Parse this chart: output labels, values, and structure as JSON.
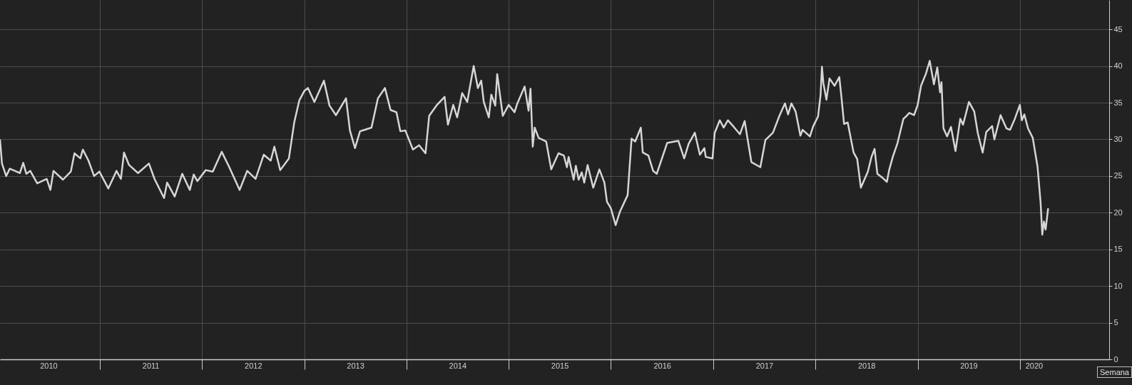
{
  "chart_data": {
    "type": "line",
    "x": [
      "2010-01-10",
      "2010-01-17",
      "2010-02-01",
      "2010-02-14",
      "2010-03-04",
      "2010-03-22",
      "2010-04-03",
      "2010-04-14",
      "2010-04-28",
      "2010-05-23",
      "2010-06-26",
      "2010-07-09",
      "2010-07-20",
      "2010-08-23",
      "2010-09-20",
      "2010-10-03",
      "2010-10-24",
      "2010-11-02",
      "2010-11-22",
      "2010-12-12",
      "2010-12-31",
      "2011-02-01",
      "2011-03-02",
      "2011-03-18",
      "2011-03-29",
      "2011-04-16",
      "2011-05-18",
      "2011-06-26",
      "2011-07-16",
      "2011-08-19",
      "2011-08-30",
      "2011-09-26",
      "2011-10-23",
      "2011-11-19",
      "2011-12-03",
      "2011-12-16",
      "2012-01-15",
      "2012-02-09",
      "2012-03-12",
      "2012-04-08",
      "2012-05-15",
      "2012-06-11",
      "2012-07-11",
      "2012-08-09",
      "2012-09-03",
      "2012-09-16",
      "2012-10-07",
      "2012-11-07",
      "2012-11-26",
      "2012-12-14",
      "2013-01-01",
      "2013-01-14",
      "2013-02-06",
      "2013-03-12",
      "2013-04-01",
      "2013-04-24",
      "2013-05-30",
      "2013-06-13",
      "2013-07-01",
      "2013-07-19",
      "2013-08-29",
      "2013-09-21",
      "2013-10-16",
      "2013-11-05",
      "2013-11-26",
      "2013-12-10",
      "2013-12-28",
      "2014-01-24",
      "2014-02-15",
      "2014-03-10",
      "2014-03-23",
      "2014-04-20",
      "2014-05-17",
      "2014-05-29",
      "2014-06-17",
      "2014-07-01",
      "2014-07-19",
      "2014-08-06",
      "2014-08-29",
      "2014-09-13",
      "2014-09-25",
      "2014-10-04",
      "2014-10-22",
      "2014-10-31",
      "2014-11-14",
      "2014-11-21",
      "2014-12-11",
      "2015-01-01",
      "2015-01-22",
      "2015-01-31",
      "2015-02-27",
      "2015-03-13",
      "2015-03-20",
      "2015-03-28",
      "2015-04-04",
      "2015-04-18",
      "2015-05-15",
      "2015-06-02",
      "2015-06-28",
      "2015-07-17",
      "2015-07-28",
      "2015-08-03",
      "2015-08-21",
      "2015-08-29",
      "2015-09-08",
      "2015-09-19",
      "2015-09-28",
      "2015-10-10",
      "2015-10-30",
      "2015-11-21",
      "2015-12-09",
      "2015-12-18",
      "2016-01-01",
      "2016-01-18",
      "2016-02-02",
      "2016-03-01",
      "2016-03-15",
      "2016-03-28",
      "2016-04-17",
      "2016-04-24",
      "2016-05-14",
      "2016-05-31",
      "2016-06-13",
      "2016-07-20",
      "2016-08-29",
      "2016-09-19",
      "2016-10-05",
      "2016-10-27",
      "2016-11-14",
      "2016-11-30",
      "2016-12-05",
      "2016-12-29",
      "2017-01-06",
      "2017-01-24",
      "2017-02-07",
      "2017-02-22",
      "2017-03-15",
      "2017-04-06",
      "2017-04-23",
      "2017-05-04",
      "2017-05-17",
      "2017-06-18",
      "2017-07-06",
      "2017-08-02",
      "2017-08-25",
      "2017-09-14",
      "2017-09-25",
      "2017-10-07",
      "2017-10-22",
      "2017-11-08",
      "2017-11-16",
      "2017-12-12",
      "2017-12-24",
      "2018-01-10",
      "2018-01-19",
      "2018-01-24",
      "2018-01-29",
      "2018-02-09",
      "2018-02-20",
      "2018-03-10",
      "2018-03-27",
      "2018-04-03",
      "2018-04-13",
      "2018-04-26",
      "2018-05-17",
      "2018-05-30",
      "2018-06-12",
      "2018-07-07",
      "2018-07-20",
      "2018-07-31",
      "2018-08-10",
      "2018-08-27",
      "2018-09-13",
      "2018-09-21",
      "2018-10-04",
      "2018-10-21",
      "2018-11-11",
      "2018-11-20",
      "2018-12-02",
      "2018-12-19",
      "2019-01-01",
      "2019-01-13",
      "2019-01-30",
      "2019-02-13",
      "2019-02-28",
      "2019-03-12",
      "2019-03-22",
      "2019-03-27",
      "2019-04-03",
      "2019-04-16",
      "2019-04-30",
      "2019-05-16",
      "2019-06-02",
      "2019-06-12",
      "2019-06-23",
      "2019-07-03",
      "2019-07-22",
      "2019-08-04",
      "2019-08-21",
      "2019-09-03",
      "2019-09-24",
      "2019-10-02",
      "2019-10-24",
      "2019-11-14",
      "2019-11-27",
      "2019-12-14",
      "2020-01-01",
      "2020-01-08",
      "2020-01-17",
      "2020-01-30",
      "2020-02-16",
      "2020-03-04",
      "2020-03-15",
      "2020-03-21",
      "2020-03-27",
      "2020-04-02",
      "2020-04-11"
    ],
    "series": [
      {
        "color": "#d6d6d6",
        "values": [
          30.0,
          26.7,
          25.0,
          26.0,
          25.7,
          25.4,
          26.8,
          25.3,
          25.7,
          24.0,
          24.6,
          23.1,
          25.7,
          24.5,
          25.6,
          28.1,
          27.4,
          28.6,
          27.1,
          25.0,
          25.6,
          23.3,
          25.7,
          24.6,
          28.2,
          26.5,
          25.4,
          26.7,
          24.6,
          22.0,
          24.1,
          22.2,
          25.3,
          23.1,
          25.2,
          24.3,
          25.8,
          25.6,
          28.3,
          26.2,
          23.1,
          25.7,
          24.6,
          27.9,
          27.1,
          29.0,
          25.8,
          27.4,
          32.3,
          35.3,
          36.6,
          37.0,
          35.1,
          38.0,
          34.6,
          33.3,
          35.6,
          31.2,
          28.8,
          31.1,
          31.6,
          35.6,
          37.0,
          34.0,
          33.7,
          31.1,
          31.2,
          28.6,
          29.2,
          28.1,
          33.2,
          34.7,
          35.8,
          32.0,
          34.7,
          33.0,
          36.3,
          35.1,
          40.0,
          37.0,
          38.0,
          35.1,
          33.0,
          36.1,
          34.6,
          38.9,
          33.2,
          34.7,
          33.7,
          34.8,
          37.2,
          33.9,
          36.9,
          29.0,
          31.6,
          30.2,
          29.7,
          25.9,
          28.1,
          27.8,
          26.2,
          27.6,
          24.5,
          26.4,
          24.5,
          25.5,
          24.1,
          26.5,
          23.4,
          25.9,
          24.1,
          21.5,
          20.6,
          18.3,
          20.1,
          22.4,
          30.1,
          29.7,
          31.6,
          28.2,
          27.8,
          25.7,
          25.3,
          29.5,
          29.8,
          27.4,
          29.4,
          30.9,
          27.9,
          28.8,
          27.6,
          27.4,
          30.9,
          32.6,
          31.6,
          32.6,
          31.7,
          30.7,
          32.5,
          29.9,
          26.9,
          26.2,
          29.9,
          30.9,
          33.2,
          34.9,
          33.4,
          34.9,
          33.8,
          30.5,
          31.3,
          30.4,
          31.8,
          33.1,
          36.0,
          39.9,
          37.7,
          35.4,
          38.3,
          37.3,
          38.5,
          36.0,
          32.1,
          32.3,
          28.2,
          27.3,
          23.4,
          25.6,
          27.6,
          28.7,
          25.3,
          24.8,
          24.2,
          25.8,
          27.6,
          29.5,
          32.8,
          33.1,
          33.6,
          33.3,
          34.7,
          37.3,
          38.9,
          40.7,
          37.5,
          39.8,
          36.4,
          37.8,
          31.5,
          30.4,
          31.7,
          28.4,
          32.8,
          32.0,
          33.6,
          35.1,
          33.8,
          30.8,
          28.2,
          31.0,
          31.8,
          30.0,
          33.3,
          31.5,
          31.3,
          32.8,
          34.7,
          32.6,
          33.4,
          31.5,
          30.2,
          26.3,
          21.4,
          17.0,
          18.8,
          17.7,
          20.6
        ]
      }
    ],
    "xlim": [
      "2010-01-10",
      "2020-11-15"
    ],
    "xticks": [
      {
        "value": "2010-07-02",
        "label": "2010"
      },
      {
        "value": "2011-01-01",
        "label": null
      },
      {
        "value": "2011-07-02",
        "label": "2011"
      },
      {
        "value": "2012-01-01",
        "label": null
      },
      {
        "value": "2012-07-02",
        "label": "2012"
      },
      {
        "value": "2013-01-01",
        "label": null
      },
      {
        "value": "2013-07-02",
        "label": "2013"
      },
      {
        "value": "2014-01-01",
        "label": null
      },
      {
        "value": "2014-07-02",
        "label": "2014"
      },
      {
        "value": "2015-01-01",
        "label": null
      },
      {
        "value": "2015-07-02",
        "label": "2015"
      },
      {
        "value": "2016-01-01",
        "label": null
      },
      {
        "value": "2016-07-02",
        "label": "2016"
      },
      {
        "value": "2017-01-01",
        "label": null
      },
      {
        "value": "2017-07-02",
        "label": "2017"
      },
      {
        "value": "2018-01-01",
        "label": null
      },
      {
        "value": "2018-07-02",
        "label": "2018"
      },
      {
        "value": "2019-01-01",
        "label": null
      },
      {
        "value": "2019-07-02",
        "label": "2019"
      },
      {
        "value": "2020-01-01",
        "label": null
      },
      {
        "value": "2020-02-20",
        "label": "2020"
      }
    ],
    "ylim": [
      0,
      49
    ],
    "yticks": [
      0,
      5,
      10,
      15,
      20,
      25,
      30,
      35,
      40,
      45
    ],
    "grid": true,
    "annotations": [
      "Semana"
    ]
  }
}
